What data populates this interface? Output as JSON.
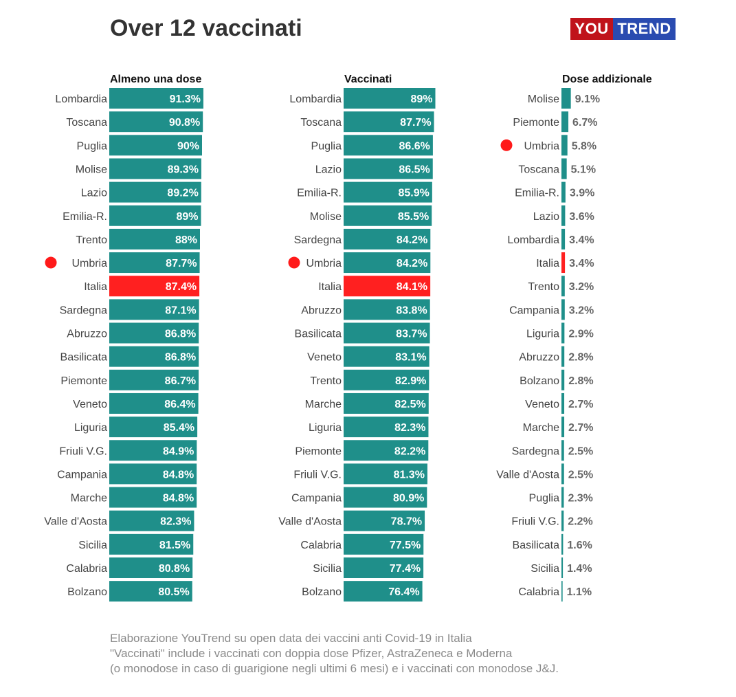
{
  "title": "Over 12 vaccinati",
  "logo": {
    "part1": "YOU",
    "part2": "TREND"
  },
  "colors": {
    "bar": "#1f8f8a",
    "highlight": "#ff2020",
    "marker": "#ff1a1a"
  },
  "chart_data": [
    {
      "type": "bar",
      "orientation": "horizontal",
      "title": "Almeno una dose",
      "xlim": [
        0,
        100
      ],
      "highlight": "Italia",
      "marker": "Umbria",
      "categories": [
        "Lombardia",
        "Toscana",
        "Puglia",
        "Molise",
        "Lazio",
        "Emilia-R.",
        "Trento",
        "Umbria",
        "Italia",
        "Sardegna",
        "Abruzzo",
        "Basilicata",
        "Piemonte",
        "Veneto",
        "Liguria",
        "Friuli V.G.",
        "Campania",
        "Marche",
        "Valle d'Aosta",
        "Sicilia",
        "Calabria",
        "Bolzano"
      ],
      "values": [
        91.3,
        90.8,
        90,
        89.3,
        89.2,
        89,
        88,
        87.7,
        87.4,
        87.1,
        86.8,
        86.8,
        86.7,
        86.4,
        85.4,
        84.9,
        84.8,
        84.8,
        82.3,
        81.5,
        80.8,
        80.5
      ],
      "labels": [
        "91.3%",
        "90.8%",
        "90%",
        "89.3%",
        "89.2%",
        "89%",
        "88%",
        "87.7%",
        "87.4%",
        "87.1%",
        "86.8%",
        "86.8%",
        "86.7%",
        "86.4%",
        "85.4%",
        "84.9%",
        "84.8%",
        "84.8%",
        "82.3%",
        "81.5%",
        "80.8%",
        "80.5%"
      ]
    },
    {
      "type": "bar",
      "orientation": "horizontal",
      "title": "Vaccinati",
      "xlim": [
        0,
        100
      ],
      "highlight": "Italia",
      "marker": "Umbria",
      "categories": [
        "Lombardia",
        "Toscana",
        "Puglia",
        "Lazio",
        "Emilia-R.",
        "Molise",
        "Sardegna",
        "Umbria",
        "Italia",
        "Abruzzo",
        "Basilicata",
        "Veneto",
        "Trento",
        "Marche",
        "Liguria",
        "Piemonte",
        "Friuli V.G.",
        "Campania",
        "Valle d'Aosta",
        "Calabria",
        "Sicilia",
        "Bolzano"
      ],
      "values": [
        89,
        87.7,
        86.6,
        86.5,
        85.9,
        85.5,
        84.2,
        84.2,
        84.1,
        83.8,
        83.7,
        83.1,
        82.9,
        82.5,
        82.3,
        82.2,
        81.3,
        80.9,
        78.7,
        77.5,
        77.4,
        76.4
      ],
      "labels": [
        "89%",
        "87.7%",
        "86.6%",
        "86.5%",
        "85.9%",
        "85.5%",
        "84.2%",
        "84.2%",
        "84.1%",
        "83.8%",
        "83.7%",
        "83.1%",
        "82.9%",
        "82.5%",
        "82.3%",
        "82.2%",
        "81.3%",
        "80.9%",
        "78.7%",
        "77.5%",
        "77.4%",
        "76.4%"
      ]
    },
    {
      "type": "bar",
      "orientation": "horizontal",
      "title": "Dose addizionale",
      "xlim": [
        0,
        100
      ],
      "highlight": "Italia",
      "marker": "Umbria",
      "categories": [
        "Molise",
        "Piemonte",
        "Umbria",
        "Toscana",
        "Emilia-R.",
        "Lazio",
        "Lombardia",
        "Italia",
        "Trento",
        "Campania",
        "Liguria",
        "Abruzzo",
        "Bolzano",
        "Veneto",
        "Marche",
        "Sardegna",
        "Valle d'Aosta",
        "Puglia",
        "Friuli V.G.",
        "Basilicata",
        "Sicilia",
        "Calabria"
      ],
      "values": [
        9.1,
        6.7,
        5.8,
        5.1,
        3.9,
        3.6,
        3.4,
        3.4,
        3.2,
        3.2,
        2.9,
        2.8,
        2.8,
        2.7,
        2.7,
        2.5,
        2.5,
        2.3,
        2.2,
        1.6,
        1.4,
        1.1
      ],
      "labels": [
        "9.1%",
        "6.7%",
        "5.8%",
        "5.1%",
        "3.9%",
        "3.6%",
        "3.4%",
        "3.4%",
        "3.2%",
        "3.2%",
        "2.9%",
        "2.8%",
        "2.8%",
        "2.7%",
        "2.7%",
        "2.5%",
        "2.5%",
        "2.3%",
        "2.2%",
        "1.6%",
        "1.4%",
        "1.1%"
      ]
    }
  ],
  "footer": [
    "Elaborazione YouTrend su open data dei vaccini anti Covid-19 in Italia",
    "\"Vaccinati\" include i vaccinati con doppia dose Pfizer, AstraZeneca e Moderna",
    "(o monodose in caso di guarigione negli ultimi 6 mesi) e i vaccinati con monodose J&J."
  ]
}
